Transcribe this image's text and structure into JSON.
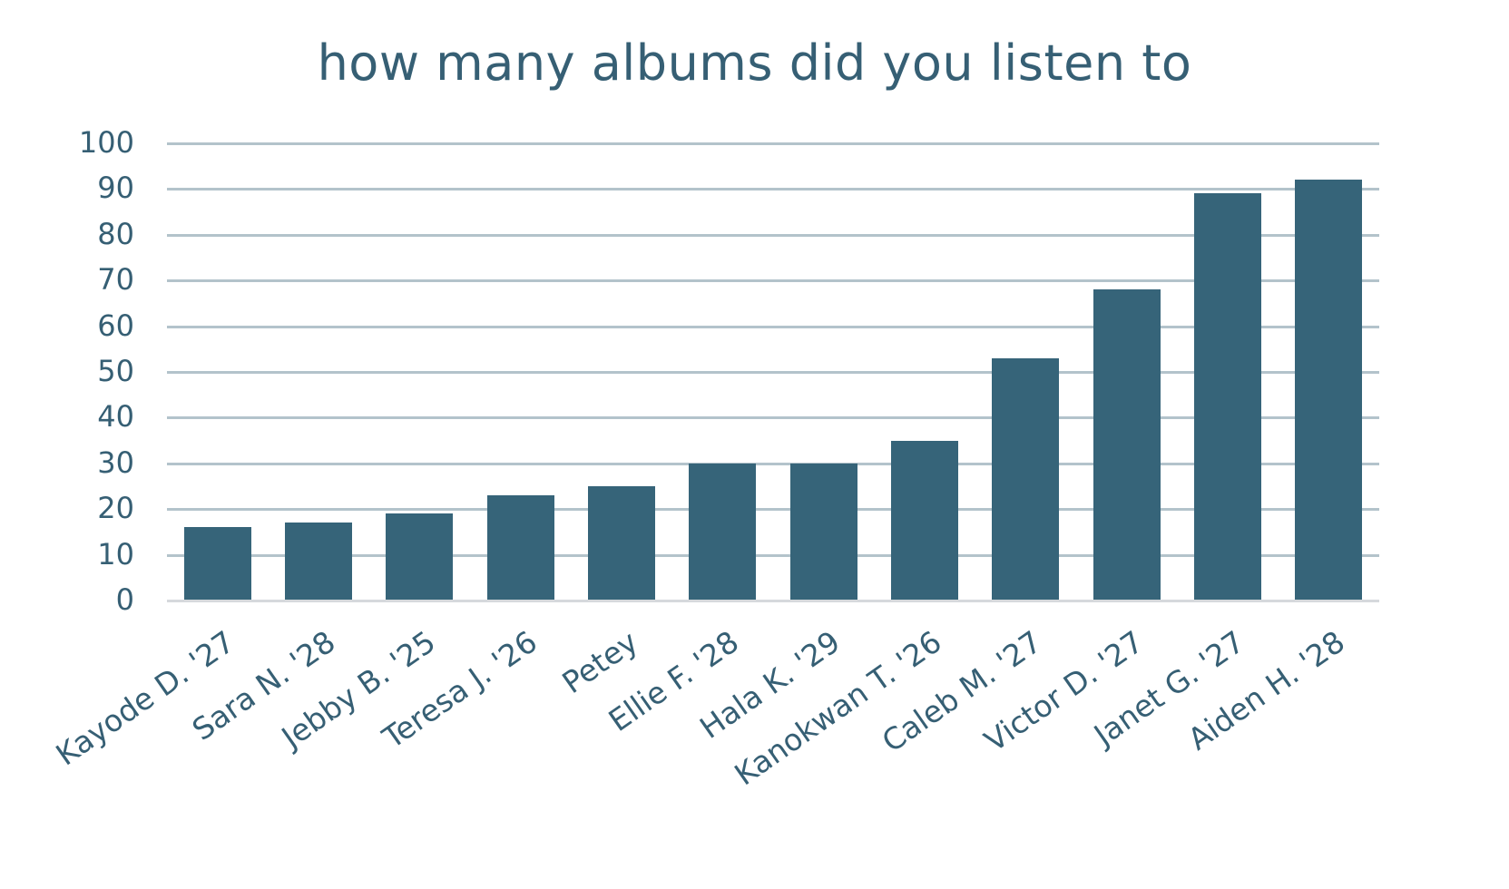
{
  "chart_data": {
    "type": "bar",
    "title": "how many albums did you listen to",
    "xlabel": "",
    "ylabel": "",
    "categories": [
      "Kayode D. '27",
      "Sara N. '28",
      "Jebby B. '25",
      "Teresa J. '26",
      "Petey",
      "Ellie F. '28",
      "Hala K. '29",
      "Kanokwan T. '26",
      "Caleb M. '27",
      "Victor D. '27",
      "Janet G. '27",
      "Aiden H. '28"
    ],
    "values": [
      16,
      17,
      19,
      23,
      25,
      30,
      30,
      35,
      53,
      68,
      89,
      92
    ],
    "ylim": [
      0,
      100
    ],
    "yticks": [
      "0",
      "10",
      "20",
      "30",
      "40",
      "50",
      "60",
      "70",
      "80",
      "90",
      "100"
    ],
    "grid": true,
    "legend": null,
    "colors": {
      "bar": "#366479",
      "grid": "#b3c3cb",
      "text": "#365f74"
    }
  }
}
